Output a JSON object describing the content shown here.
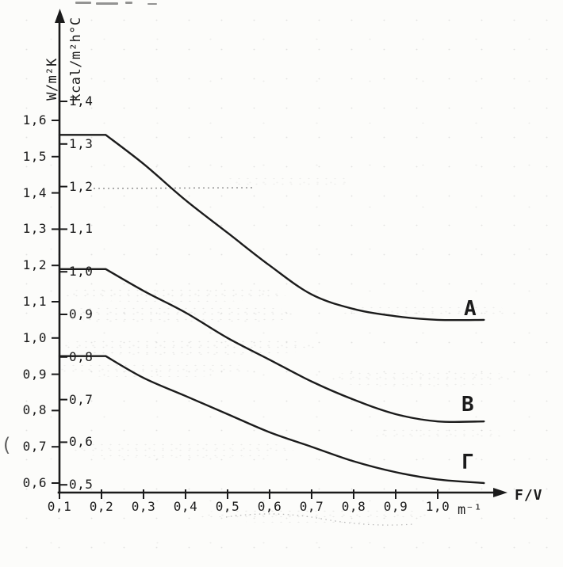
{
  "page": {
    "paper_color": "#fcfcfa",
    "ink_color": "#1b1b1b"
  },
  "scan_artifacts": {
    "stray_paren": "("
  },
  "chart_data": {
    "type": "line",
    "title": "",
    "grid": false,
    "x_axis": {
      "quantity": "F/V",
      "unit": "m⁻¹",
      "tick_labels": [
        "0,1",
        "0,2",
        "0,3",
        "0,4",
        "0,5",
        "0,6",
        "0,7",
        "0,8",
        "0,9",
        "1,0"
      ],
      "range": [
        0.1,
        1.12
      ]
    },
    "y_axis_primary": {
      "unit": "W/m²K",
      "tick_labels": [
        "1,6",
        "1,5",
        "1,4",
        "1,3",
        "1,2",
        "1,1",
        "1,0",
        "0,9",
        "0,8",
        "0,7",
        "0,6"
      ],
      "range": [
        0.55,
        1.66
      ]
    },
    "y_axis_secondary": {
      "unit": "kcal/m²h°C",
      "tick_labels": [
        "1,4",
        "1,3",
        "1,2",
        "1,1",
        "1,0",
        "0,9",
        "0,8",
        "0,7",
        "0,6",
        "0,5"
      ]
    },
    "series": [
      {
        "name": "A",
        "x": [
          0.1,
          0.21,
          0.3,
          0.4,
          0.5,
          0.6,
          0.7,
          0.8,
          0.9,
          1.0,
          1.11
        ],
        "y": [
          1.56,
          1.56,
          1.48,
          1.38,
          1.29,
          1.2,
          1.12,
          1.08,
          1.06,
          1.05,
          1.05
        ]
      },
      {
        "name": "B",
        "x": [
          0.1,
          0.21,
          0.3,
          0.4,
          0.5,
          0.6,
          0.7,
          0.8,
          0.9,
          1.0,
          1.11
        ],
        "y": [
          1.19,
          1.19,
          1.13,
          1.07,
          1.0,
          0.94,
          0.88,
          0.83,
          0.79,
          0.77,
          0.77
        ]
      },
      {
        "name": "Γ",
        "x": [
          0.1,
          0.21,
          0.3,
          0.4,
          0.5,
          0.6,
          0.7,
          0.8,
          0.9,
          1.0,
          1.11
        ],
        "y": [
          0.95,
          0.95,
          0.89,
          0.84,
          0.79,
          0.74,
          0.7,
          0.66,
          0.63,
          0.61,
          0.6
        ]
      }
    ]
  }
}
